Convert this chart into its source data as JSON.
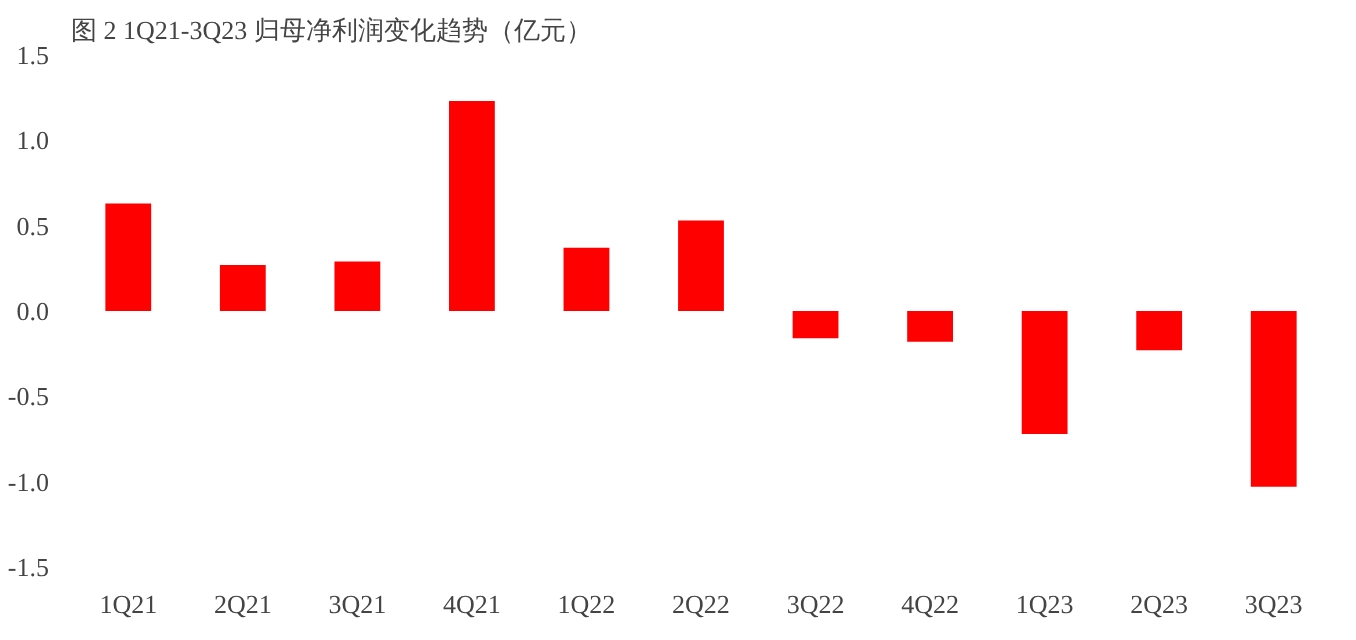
{
  "chart_data": {
    "type": "bar",
    "title": "图 2 1Q21-3Q23 归母净利润变化趋势（亿元）",
    "categories": [
      "1Q21",
      "2Q21",
      "3Q21",
      "4Q21",
      "1Q22",
      "2Q22",
      "3Q22",
      "4Q22",
      "1Q23",
      "2Q23",
      "3Q23"
    ],
    "values": [
      0.63,
      0.27,
      0.29,
      1.23,
      0.37,
      0.53,
      -0.16,
      -0.18,
      -0.72,
      -0.23,
      -1.03
    ],
    "color": "#ff0000",
    "ylim": [
      -1.5,
      1.5
    ],
    "yticks": [
      {
        "value": -1.5,
        "label": "-1.5"
      },
      {
        "value": -1.0,
        "label": "-1.0"
      },
      {
        "value": -0.5,
        "label": "-0.5"
      },
      {
        "value": 0,
        "label": "0.0"
      },
      {
        "value": 0.5,
        "label": "0.5"
      },
      {
        "value": 1.0,
        "label": "1.0"
      },
      {
        "value": 1.5,
        "label": "1.5"
      }
    ],
    "grid": false
  }
}
